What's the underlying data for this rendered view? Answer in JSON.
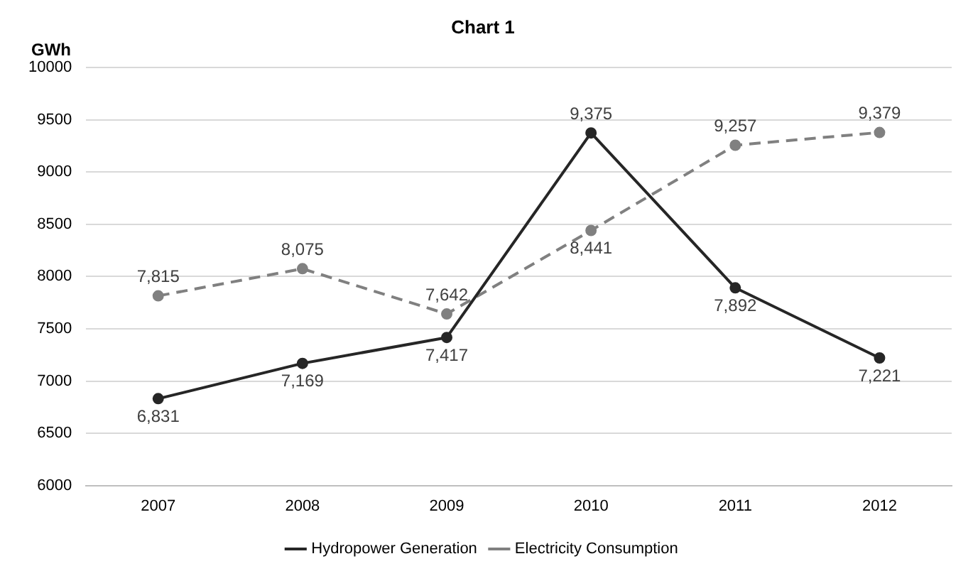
{
  "chart_data": {
    "type": "line",
    "title": "Chart 1",
    "ylabel": "GWh",
    "categories": [
      "2007",
      "2008",
      "2009",
      "2010",
      "2011",
      "2012"
    ],
    "series": [
      {
        "name": "Hydropower Generation",
        "color": "#262626",
        "line_style": "solid",
        "values": [
          6831,
          7169,
          7417,
          9375,
          7892,
          7221
        ],
        "value_labels": [
          "6,831",
          "7,169",
          "7,417",
          "9,375",
          "7,892",
          "7,221"
        ]
      },
      {
        "name": "Electricity Consumption",
        "color": "#808080",
        "line_style": "dashed",
        "values": [
          7815,
          8075,
          7642,
          8441,
          9257,
          9379
        ],
        "value_labels": [
          "7,815",
          "8,075",
          "7,642",
          "8,441",
          "9,257",
          "9,379"
        ]
      }
    ],
    "ylim": [
      6000,
      10000
    ],
    "yticks": [
      6000,
      6500,
      7000,
      7500,
      8000,
      8500,
      9000,
      9500,
      10000
    ],
    "grid": "y",
    "legend": "bottom",
    "marker": "circle"
  }
}
